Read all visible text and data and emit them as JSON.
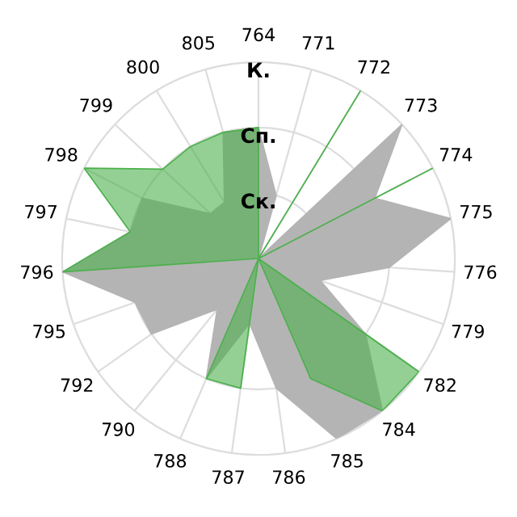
{
  "chart_data": {
    "type": "radar",
    "categories": [
      "764",
      "771",
      "772",
      "773",
      "774",
      "775",
      "776",
      "779",
      "782",
      "784",
      "785",
      "786",
      "787",
      "788",
      "790",
      "792",
      "795",
      "796",
      "797",
      "798",
      "799",
      "800",
      "805"
    ],
    "series": [
      {
        "color": "#b4b4b4",
        "values": [
          2,
          1,
          0,
          3,
          2,
          3,
          2,
          1,
          2,
          3,
          3,
          2,
          1,
          2,
          1,
          2,
          2,
          3,
          2,
          2,
          1,
          1,
          2
        ]
      },
      {
        "color": "#4cb04c",
        "values": [
          2,
          0,
          3,
          0,
          3,
          0,
          0,
          0,
          3,
          3,
          2,
          0,
          2,
          2,
          0,
          0,
          0,
          3,
          2,
          3,
          2,
          2,
          2
        ]
      }
    ],
    "ylim": [
      0,
      3
    ],
    "yticks": [
      {
        "value": 1,
        "label": "Ск."
      },
      {
        "value": 2,
        "label": "Сп."
      },
      {
        "value": 3,
        "label": "К."
      }
    ],
    "grid": true
  }
}
